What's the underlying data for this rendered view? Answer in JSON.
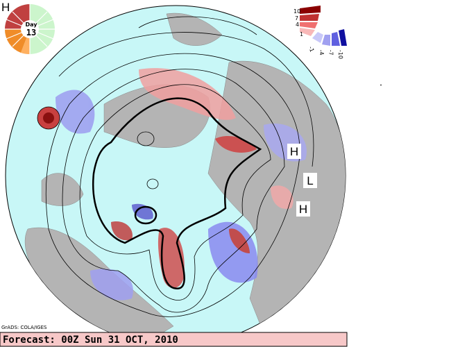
{
  "header": {
    "corner_label": "H",
    "day_word": "Day",
    "day_number": "13"
  },
  "legend": {
    "labels": [
      "10",
      "7",
      "4",
      "1",
      "-1",
      "-4",
      "-7",
      "-10"
    ]
  },
  "map": {
    "labels": [
      "H",
      "L",
      "H"
    ]
  },
  "footer": {
    "credit": "GrADS: COLA/IGES",
    "forecast": "Forecast: 00Z Sun 31 OCT, 2010"
  }
}
